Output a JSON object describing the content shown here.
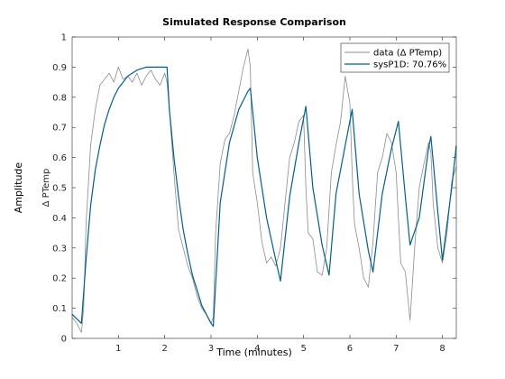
{
  "chart_data": {
    "type": "line",
    "title": "Simulated Response Comparison",
    "xlabel": "Time (minutes)",
    "outer_ylabel": "Amplitude",
    "ylabel": "Δ PTemp",
    "xlim": [
      0,
      8.3
    ],
    "ylim": [
      0,
      1
    ],
    "xticks": [
      1,
      2,
      3,
      4,
      5,
      6,
      7,
      8
    ],
    "yticks": [
      0,
      0.1,
      0.2,
      0.3,
      0.4,
      0.5,
      0.6,
      0.7,
      0.8,
      0.9,
      1
    ],
    "grid": false,
    "legend_position": "top-right",
    "series": [
      {
        "name": "data (Δ PTemp)",
        "color": "#8c8c8c",
        "x": [
          0,
          0.1,
          0.2,
          0.25,
          0.3,
          0.4,
          0.5,
          0.6,
          0.7,
          0.8,
          0.9,
          1.0,
          1.1,
          1.2,
          1.3,
          1.4,
          1.5,
          1.6,
          1.7,
          1.8,
          1.9,
          2.0,
          2.05,
          2.1,
          2.2,
          2.3,
          2.4,
          2.5,
          2.6,
          2.7,
          2.8,
          2.9,
          3.0,
          3.05,
          3.1,
          3.2,
          3.3,
          3.4,
          3.5,
          3.6,
          3.7,
          3.8,
          3.85,
          3.9,
          4.0,
          4.1,
          4.2,
          4.3,
          4.4,
          4.5,
          4.6,
          4.7,
          4.8,
          4.9,
          5.0,
          5.05,
          5.1,
          5.2,
          5.3,
          5.4,
          5.5,
          5.6,
          5.7,
          5.8,
          5.9,
          6.0,
          6.05,
          6.1,
          6.2,
          6.3,
          6.4,
          6.5,
          6.6,
          6.7,
          6.8,
          6.9,
          7.0,
          7.05,
          7.1,
          7.2,
          7.3,
          7.4,
          7.5,
          7.6,
          7.7,
          7.75,
          7.8,
          7.9,
          8.0,
          8.1,
          8.2,
          8.3
        ],
        "y": [
          0.07,
          0.05,
          0.02,
          0.1,
          0.38,
          0.64,
          0.76,
          0.84,
          0.86,
          0.88,
          0.85,
          0.9,
          0.86,
          0.87,
          0.85,
          0.88,
          0.84,
          0.87,
          0.89,
          0.86,
          0.84,
          0.88,
          0.85,
          0.76,
          0.55,
          0.36,
          0.3,
          0.24,
          0.2,
          0.14,
          0.1,
          0.08,
          0.05,
          0.07,
          0.35,
          0.58,
          0.66,
          0.68,
          0.74,
          0.82,
          0.9,
          0.96,
          0.9,
          0.55,
          0.45,
          0.32,
          0.25,
          0.27,
          0.24,
          0.3,
          0.45,
          0.6,
          0.65,
          0.72,
          0.74,
          0.5,
          0.35,
          0.33,
          0.22,
          0.21,
          0.3,
          0.55,
          0.64,
          0.72,
          0.87,
          0.78,
          0.55,
          0.38,
          0.3,
          0.2,
          0.17,
          0.32,
          0.55,
          0.6,
          0.68,
          0.65,
          0.55,
          0.4,
          0.25,
          0.22,
          0.06,
          0.3,
          0.5,
          0.58,
          0.65,
          0.62,
          0.45,
          0.3,
          0.25,
          0.35,
          0.52,
          0.57
        ]
      },
      {
        "name": "sysP1D: 70.76%",
        "color": "#00608c",
        "x": [
          0,
          0.2,
          0.3,
          0.4,
          0.5,
          0.6,
          0.7,
          0.8,
          0.9,
          1.0,
          1.1,
          1.2,
          1.3,
          1.4,
          1.5,
          1.6,
          1.7,
          1.8,
          1.9,
          2.0,
          2.05,
          2.1,
          2.2,
          2.3,
          2.4,
          2.5,
          2.6,
          2.7,
          2.8,
          2.9,
          3.0,
          3.05,
          3.2,
          3.4,
          3.6,
          3.8,
          3.85,
          4.0,
          4.2,
          4.4,
          4.5,
          4.7,
          4.9,
          5.05,
          5.2,
          5.4,
          5.55,
          5.7,
          5.9,
          6.05,
          6.2,
          6.4,
          6.5,
          6.7,
          6.9,
          7.05,
          7.2,
          7.3,
          7.5,
          7.7,
          7.75,
          7.9,
          8.0,
          8.2,
          8.3
        ],
        "y": [
          0.08,
          0.05,
          0.26,
          0.44,
          0.56,
          0.64,
          0.71,
          0.76,
          0.8,
          0.83,
          0.85,
          0.87,
          0.88,
          0.89,
          0.895,
          0.9,
          0.9,
          0.9,
          0.9,
          0.9,
          0.9,
          0.76,
          0.6,
          0.47,
          0.36,
          0.28,
          0.21,
          0.16,
          0.11,
          0.08,
          0.05,
          0.04,
          0.45,
          0.65,
          0.76,
          0.82,
          0.83,
          0.6,
          0.4,
          0.26,
          0.19,
          0.47,
          0.65,
          0.77,
          0.5,
          0.31,
          0.21,
          0.48,
          0.64,
          0.76,
          0.48,
          0.29,
          0.22,
          0.48,
          0.63,
          0.72,
          0.47,
          0.31,
          0.4,
          0.63,
          0.67,
          0.42,
          0.26,
          0.5,
          0.64
        ]
      }
    ]
  }
}
